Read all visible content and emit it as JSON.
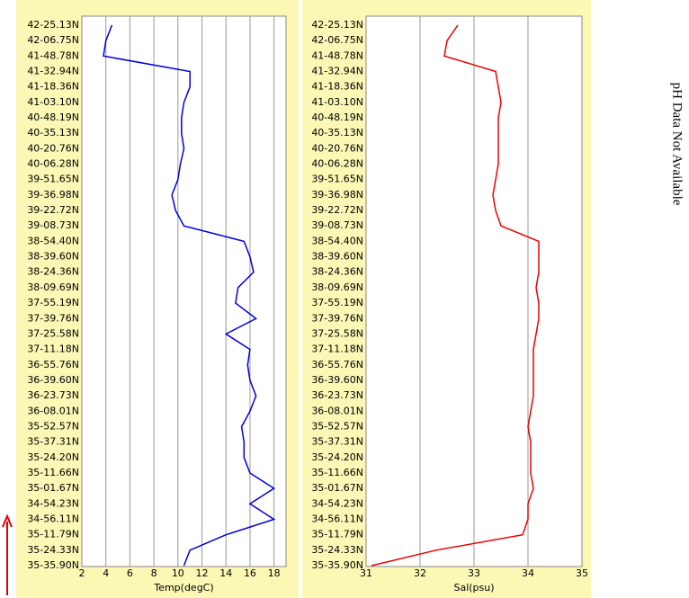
{
  "chart_data": [
    {
      "type": "line",
      "xlabel": "Temp(degC)",
      "color": "#0000dd",
      "categories": [
        "35-35.90N",
        "35-24.33N",
        "35-11.79N",
        "34-56.11N",
        "34-54.23N",
        "35-01.67N",
        "35-11.66N",
        "35-24.20N",
        "35-37.31N",
        "35-52.57N",
        "36-08.01N",
        "36-23.73N",
        "36-39.60N",
        "36-55.76N",
        "37-11.18N",
        "37-25.58N",
        "37-39.76N",
        "37-55.19N",
        "38-09.69N",
        "38-24.36N",
        "38-39.60N",
        "38-54.40N",
        "39-08.73N",
        "39-22.72N",
        "39-36.98N",
        "39-51.65N",
        "40-06.28N",
        "40-20.76N",
        "40-35.13N",
        "40-48.19N",
        "41-03.10N",
        "41-18.36N",
        "41-32.94N",
        "41-48.78N",
        "42-06.75N",
        "42-25.13N"
      ],
      "values": [
        10.5,
        11,
        14,
        18,
        16,
        18,
        16,
        15.5,
        15.5,
        15.3,
        16,
        16.5,
        16,
        15.8,
        16,
        14,
        16.5,
        14.8,
        15,
        16.3,
        16,
        15.5,
        10.5,
        9.8,
        9.5,
        10,
        10.2,
        10.5,
        10.3,
        10.3,
        10.5,
        11,
        11,
        3.8,
        4,
        4.5
      ],
      "xlim": [
        2,
        19
      ],
      "xticks": [
        2,
        4,
        6,
        8,
        10,
        12,
        14,
        16,
        18
      ],
      "grid": true
    },
    {
      "type": "line",
      "xlabel": "Sal(psu)",
      "color": "#ee0000",
      "categories": [
        "35-35.90N",
        "35-24.33N",
        "35-11.79N",
        "34-56.11N",
        "34-54.23N",
        "35-01.67N",
        "35-11.66N",
        "35-24.20N",
        "35-37.31N",
        "35-52.57N",
        "36-08.01N",
        "36-23.73N",
        "36-39.60N",
        "36-55.76N",
        "37-11.18N",
        "37-25.58N",
        "37-39.76N",
        "37-55.19N",
        "38-09.69N",
        "38-24.36N",
        "38-39.60N",
        "38-54.40N",
        "39-08.73N",
        "39-22.72N",
        "39-36.98N",
        "39-51.65N",
        "40-06.28N",
        "40-20.76N",
        "40-35.13N",
        "40-48.19N",
        "41-03.10N",
        "41-18.36N",
        "41-32.94N",
        "41-48.78N",
        "42-06.75N",
        "42-25.13N"
      ],
      "values": [
        31.1,
        32.3,
        33.9,
        34,
        34,
        34.1,
        34.05,
        34.05,
        34.05,
        34,
        34.05,
        34.1,
        34.1,
        34.1,
        34.1,
        34.15,
        34.2,
        34.2,
        34.15,
        34.2,
        34.2,
        34.2,
        33.5,
        33.4,
        33.35,
        33.4,
        33.45,
        33.45,
        33.45,
        33.45,
        33.5,
        33.45,
        33.4,
        32.45,
        32.5,
        32.7
      ],
      "xlim": [
        31,
        35
      ],
      "xticks": [
        31,
        32,
        33,
        34,
        35
      ],
      "grid": true
    }
  ],
  "ph_panel": {
    "text": "pH Data Not Available"
  }
}
